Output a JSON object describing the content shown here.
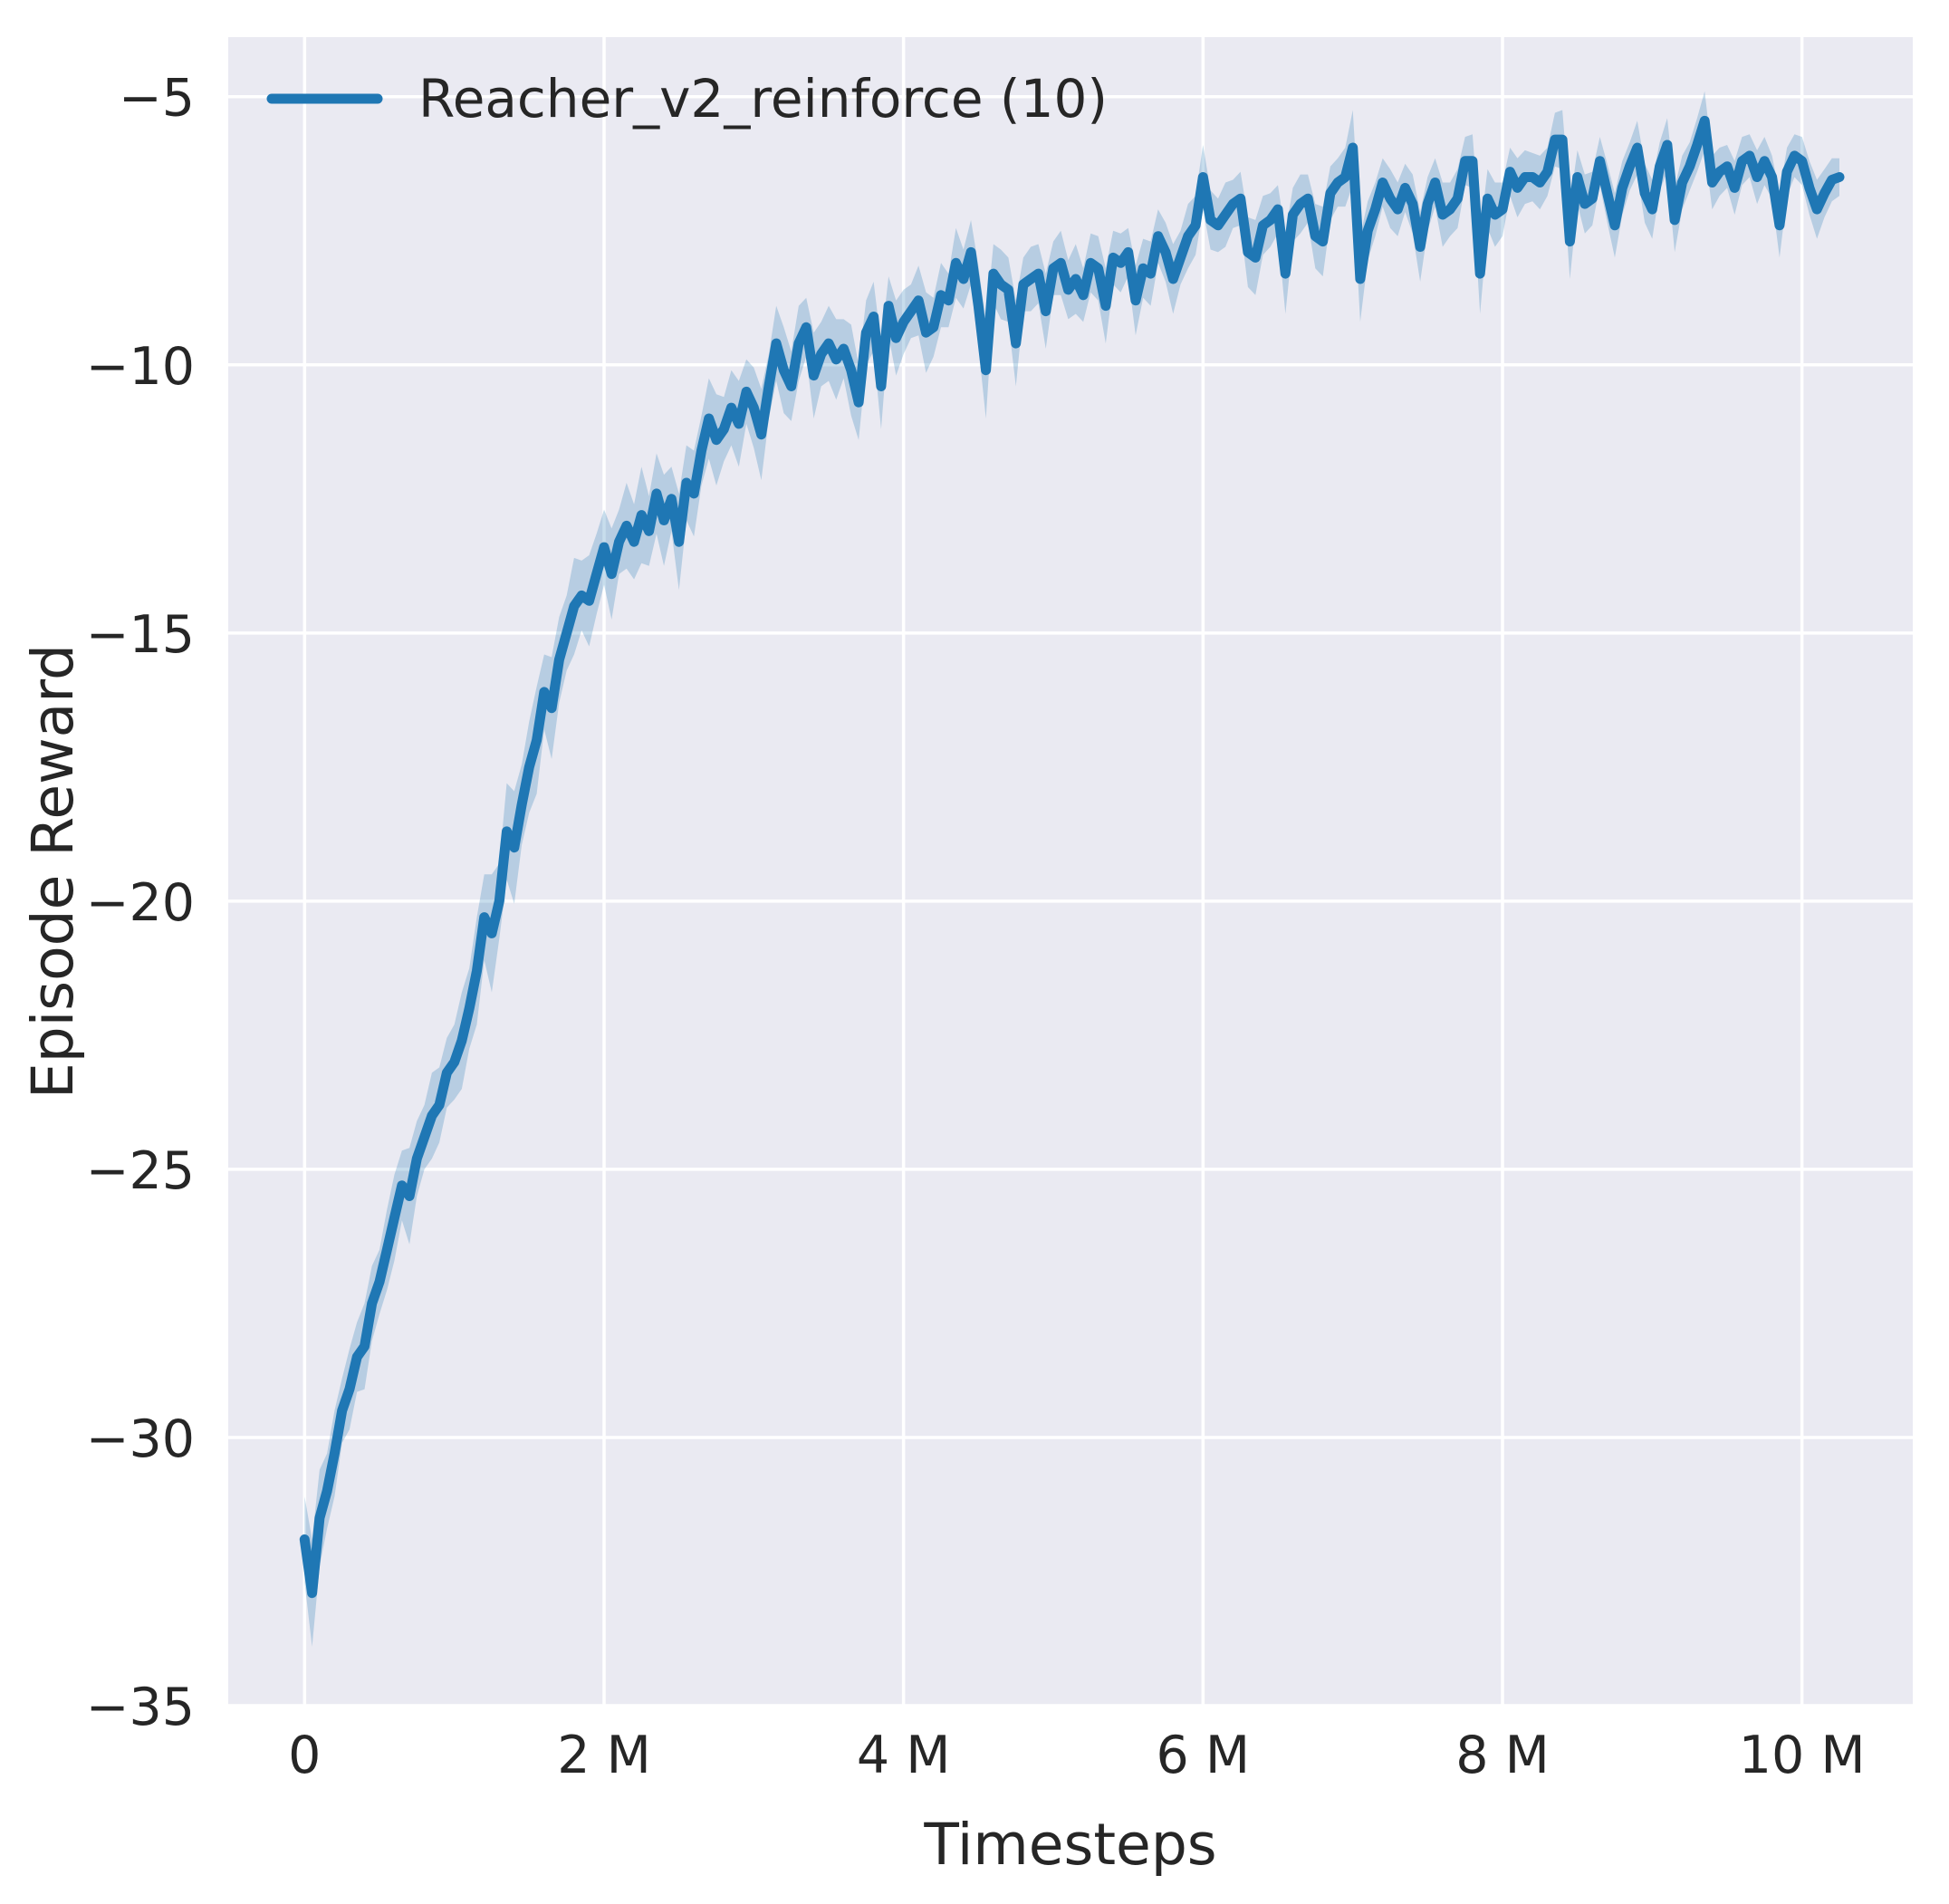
{
  "figure": {
    "background": "#ffffff",
    "axes_background": "#eaeaf2",
    "grid_color": "#ffffff",
    "text_color": "#262626"
  },
  "chart_data": {
    "type": "line",
    "title": "",
    "xlabel": "Timesteps",
    "ylabel": "Episode Reward",
    "grid": true,
    "legend_position": "upper left",
    "legend": [
      {
        "label": "Reacher_v2_reinforce (10)",
        "color": "#1f77b4"
      }
    ],
    "xlim": [
      -0.51,
      10.74
    ],
    "ylim": [
      -35.0,
      -3.89
    ],
    "x_unit": "millions of timesteps",
    "xticks": [
      {
        "value": 0,
        "label": "0"
      },
      {
        "value": 2,
        "label": "2 M"
      },
      {
        "value": 4,
        "label": "4 M"
      },
      {
        "value": 6,
        "label": "6 M"
      },
      {
        "value": 8,
        "label": "8 M"
      },
      {
        "value": 10,
        "label": "10 M"
      }
    ],
    "yticks": [
      {
        "value": -5,
        "label": "−5"
      },
      {
        "value": -10,
        "label": "−10"
      },
      {
        "value": -15,
        "label": "−15"
      },
      {
        "value": -20,
        "label": "−20"
      },
      {
        "value": -25,
        "label": "−25"
      },
      {
        "value": -30,
        "label": "−30"
      },
      {
        "value": -35,
        "label": "−35"
      }
    ],
    "series": [
      {
        "name": "Reacher_v2_reinforce (10)",
        "color": "#1f77b4",
        "line_width": 11,
        "band_alpha": 0.25,
        "x_start": 0.0,
        "x_step": 0.05,
        "mean": [
          -31.9,
          -32.9,
          -31.5,
          -31.0,
          -30.3,
          -29.5,
          -29.1,
          -28.5,
          -28.3,
          -27.5,
          -27.1,
          -26.5,
          -25.9,
          -25.3,
          -25.5,
          -24.8,
          -24.4,
          -24.0,
          -23.8,
          -23.2,
          -23.0,
          -22.6,
          -22.0,
          -21.3,
          -20.3,
          -20.6,
          -20.0,
          -18.7,
          -19.0,
          -18.2,
          -17.5,
          -17.0,
          -16.1,
          -16.4,
          -15.5,
          -15.0,
          -14.5,
          -14.3,
          -14.4,
          -13.9,
          -13.4,
          -13.9,
          -13.3,
          -13.0,
          -13.3,
          -12.8,
          -13.1,
          -12.4,
          -12.9,
          -12.5,
          -13.3,
          -12.2,
          -12.4,
          -11.6,
          -11.0,
          -11.4,
          -11.2,
          -10.8,
          -11.1,
          -10.5,
          -10.8,
          -11.3,
          -10.4,
          -9.6,
          -10.1,
          -10.4,
          -9.6,
          -9.3,
          -10.2,
          -9.8,
          -9.6,
          -9.9,
          -9.7,
          -10.1,
          -10.7,
          -9.4,
          -9.1,
          -10.4,
          -8.9,
          -9.5,
          -9.2,
          -9.0,
          -8.8,
          -9.4,
          -9.3,
          -8.7,
          -8.8,
          -8.1,
          -8.4,
          -7.9,
          -8.9,
          -10.1,
          -8.3,
          -8.5,
          -8.6,
          -9.6,
          -8.5,
          -8.4,
          -8.3,
          -9.0,
          -8.2,
          -8.1,
          -8.6,
          -8.4,
          -8.7,
          -8.1,
          -8.2,
          -8.9,
          -8.0,
          -8.1,
          -7.9,
          -8.8,
          -8.2,
          -8.3,
          -7.6,
          -7.9,
          -8.4,
          -8.0,
          -7.6,
          -7.4,
          -6.5,
          -7.3,
          -7.4,
          -7.2,
          -7.0,
          -6.9,
          -7.9,
          -8.0,
          -7.4,
          -7.3,
          -7.1,
          -8.3,
          -7.2,
          -7.0,
          -6.9,
          -7.6,
          -7.7,
          -6.8,
          -6.6,
          -6.5,
          -5.95,
          -8.4,
          -7.5,
          -7.1,
          -6.6,
          -6.9,
          -7.1,
          -6.7,
          -7.0,
          -7.8,
          -7.0,
          -6.6,
          -7.2,
          -7.1,
          -6.9,
          -6.2,
          -6.2,
          -8.3,
          -6.9,
          -7.2,
          -7.1,
          -6.4,
          -6.7,
          -6.5,
          -6.5,
          -6.6,
          -6.4,
          -5.8,
          -5.8,
          -7.7,
          -6.5,
          -7.0,
          -6.9,
          -6.2,
          -6.8,
          -7.4,
          -6.7,
          -6.3,
          -5.95,
          -6.8,
          -7.1,
          -6.3,
          -5.9,
          -7.3,
          -6.6,
          -6.3,
          -5.9,
          -5.45,
          -6.6,
          -6.4,
          -6.3,
          -6.7,
          -6.2,
          -6.1,
          -6.5,
          -6.2,
          -6.5,
          -7.4,
          -6.4,
          -6.1,
          -6.2,
          -6.7,
          -7.1,
          -6.8,
          -6.55,
          -6.5
        ],
        "band_halfwidth": [
          0.8,
          1.0,
          0.9,
          0.7,
          0.8,
          0.6,
          0.75,
          0.65,
          0.8,
          0.7,
          0.6,
          0.75,
          0.8,
          0.65,
          0.9,
          0.7,
          0.6,
          0.8,
          0.7,
          0.65,
          0.7,
          0.9,
          0.75,
          1.0,
          0.8,
          1.1,
          0.7,
          0.9,
          1.05,
          0.75,
          0.85,
          1.0,
          0.7,
          0.95,
          0.8,
          0.7,
          0.9,
          0.65,
          0.85,
          0.75,
          0.7,
          0.85,
          0.6,
          0.8,
          0.7,
          0.9,
          0.65,
          0.75,
          0.85,
          0.6,
          0.9,
          0.7,
          0.8,
          0.65,
          0.75,
          0.85,
          0.6,
          0.7,
          0.8,
          0.6,
          0.75,
          0.85,
          0.6,
          0.7,
          0.8,
          0.65,
          0.7,
          0.55,
          0.8,
          0.6,
          0.7,
          0.75,
          0.55,
          0.85,
          0.7,
          0.6,
          0.65,
          0.8,
          0.55,
          0.7,
          0.6,
          0.5,
          0.65,
          0.75,
          0.55,
          0.6,
          0.5,
          0.65,
          0.55,
          0.6,
          0.75,
          0.9,
          0.55,
          0.65,
          0.6,
          0.8,
          0.5,
          0.6,
          0.55,
          0.7,
          0.5,
          0.6,
          0.55,
          0.65,
          0.5,
          0.55,
          0.6,
          0.7,
          0.5,
          0.55,
          0.45,
          0.65,
          0.55,
          0.6,
          0.5,
          0.55,
          0.65,
          0.5,
          0.6,
          0.55,
          0.6,
          0.55,
          0.5,
          0.6,
          0.45,
          0.5,
          0.65,
          0.7,
          0.55,
          0.5,
          0.45,
          0.75,
          0.5,
          0.55,
          0.45,
          0.6,
          0.65,
          0.5,
          0.45,
          0.55,
          0.7,
          0.8,
          0.55,
          0.5,
          0.45,
          0.55,
          0.5,
          0.45,
          0.55,
          0.65,
          0.5,
          0.45,
          0.6,
          0.5,
          0.55,
          0.45,
          0.5,
          0.75,
          0.55,
          0.6,
          0.5,
          0.45,
          0.55,
          0.5,
          0.45,
          0.5,
          0.45,
          0.5,
          0.55,
          0.7,
          0.5,
          0.55,
          0.5,
          0.45,
          0.55,
          0.6,
          0.5,
          0.45,
          0.5,
          0.55,
          0.55,
          0.45,
          0.5,
          0.6,
          0.5,
          0.45,
          0.5,
          0.55,
          0.5,
          0.45,
          0.4,
          0.5,
          0.45,
          0.4,
          0.5,
          0.45,
          0.4,
          0.6,
          0.45,
          0.4,
          0.45,
          0.5,
          0.55,
          0.45,
          0.4,
          0.35
        ]
      }
    ]
  }
}
